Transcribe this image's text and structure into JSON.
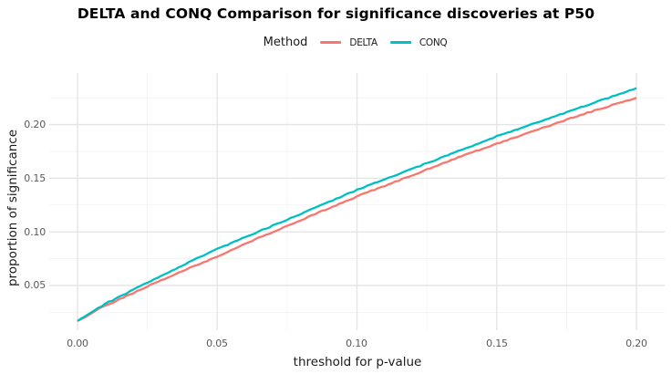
{
  "title": "DELTA and CONQ Comparison for significance discoveries at P50",
  "legend": {
    "label": "Method",
    "items": [
      {
        "name": "DELTA",
        "color": "#F8766D"
      },
      {
        "name": "CONQ",
        "color": "#00BFC4"
      }
    ]
  },
  "axes": {
    "x": {
      "label": "threshold for p-value",
      "tick_labels": [
        "0.00",
        "0.05",
        "0.10",
        "0.15",
        "0.20"
      ],
      "tick_values": [
        0,
        0.05,
        0.1,
        0.15,
        0.2
      ],
      "minor_values": [
        0.025,
        0.075,
        0.125,
        0.175
      ],
      "range": [
        -0.0102,
        0.2102
      ]
    },
    "y": {
      "label": "proportion of significance",
      "tick_labels": [
        "0.05",
        "0.10",
        "0.15",
        "0.20"
      ],
      "tick_values": [
        0.05,
        0.1,
        0.15,
        0.2
      ],
      "minor_values": [
        0.025,
        0.075,
        0.125,
        0.175,
        0.225
      ],
      "range": [
        0.0083,
        0.2481
      ]
    }
  },
  "style": {
    "background": "#ffffff",
    "grid_major_color": "#e4e4e4",
    "grid_minor_color": "#f2f2f2",
    "tick_text_color": "#595959",
    "axis_title_color": "#1a1a1a",
    "title_color": "#000000"
  },
  "chart_data": {
    "type": "line",
    "title": "DELTA and CONQ Comparison for significance discoveries at P50",
    "xlabel": "threshold for p-value",
    "ylabel": "proportion of significance",
    "legend_title": "Method",
    "legend_position": "top",
    "grid": true,
    "xlim": [
      0,
      0.2
    ],
    "ylim_visible_ticks": [
      0.05,
      0.2
    ],
    "x": [
      0,
      0.0025,
      0.005,
      0.0075,
      0.01,
      0.02,
      0.03,
      0.04,
      0.05,
      0.06,
      0.07,
      0.08,
      0.09,
      0.1,
      0.11,
      0.12,
      0.13,
      0.14,
      0.15,
      0.16,
      0.17,
      0.18,
      0.19,
      0.2
    ],
    "series": [
      {
        "name": "DELTA",
        "color": "#F8766D",
        "values": [
          0.017,
          0.02,
          0.024,
          0.028,
          0.031,
          0.043,
          0.055,
          0.066,
          0.077,
          0.089,
          0.1,
          0.111,
          0.122,
          0.133,
          0.143,
          0.153,
          0.163,
          0.173,
          0.182,
          0.191,
          0.2,
          0.209,
          0.217,
          0.225
        ]
      },
      {
        "name": "CONQ",
        "color": "#00BFC4",
        "values": [
          0.017,
          0.021,
          0.025,
          0.029,
          0.033,
          0.046,
          0.059,
          0.072,
          0.084,
          0.095,
          0.106,
          0.117,
          0.128,
          0.139,
          0.149,
          0.159,
          0.169,
          0.179,
          0.189,
          0.198,
          0.207,
          0.216,
          0.225,
          0.234
        ]
      }
    ]
  }
}
